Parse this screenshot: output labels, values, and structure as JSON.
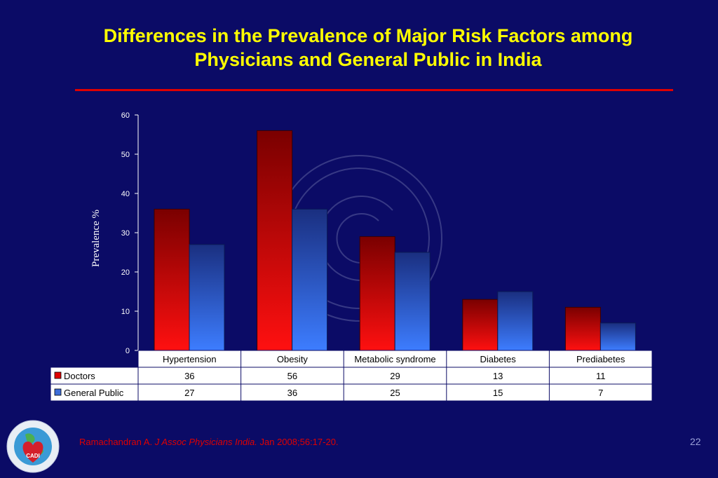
{
  "slide": {
    "title_line1": "Differences in the Prevalence of Major Risk Factors among",
    "title_line2": "Physicians and General Public in India",
    "ref_author": "Ramachandran A. ",
    "ref_journal": "J Assoc Physicians India.",
    "ref_rest": " Jan 2008;56:17-20.",
    "page_number": "22",
    "logo_text": "CADI"
  },
  "colors": {
    "background": "#0b0b66",
    "title": "#ffff00",
    "rule": "#e00000",
    "doctors_top": "#7a0000",
    "doctors_bottom": "#ff1010",
    "public_top": "#1a2f80",
    "public_bottom": "#3d7dff"
  },
  "chart_data": {
    "type": "bar",
    "ylabel": "Prevalence %",
    "ylim": [
      0,
      60
    ],
    "yticks": [
      0,
      10,
      20,
      30,
      40,
      50,
      60
    ],
    "categories": [
      "Hypertension",
      "Obesity",
      "Metabolic syndrome",
      "Diabetes",
      "Prediabetes"
    ],
    "series": [
      {
        "name": "Doctors",
        "values": [
          36,
          56,
          29,
          13,
          11
        ]
      },
      {
        "name": "General Public",
        "values": [
          27,
          36,
          25,
          15,
          7
        ]
      }
    ],
    "grid": false,
    "data_table": true
  }
}
